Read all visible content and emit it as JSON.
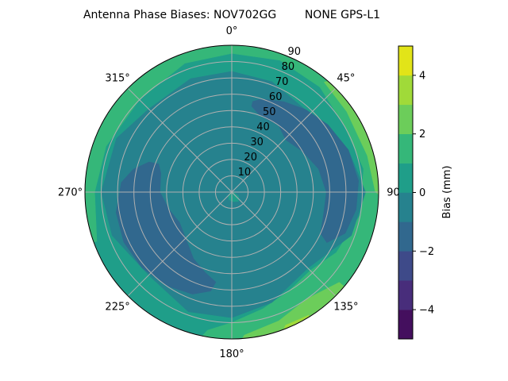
{
  "chart_data": {
    "type": "contour-polar",
    "title": "Antenna Phase Biases: NOV702GG        NONE GPS-L1",
    "angular_ticks": [
      "0°",
      "45°",
      "90",
      "135°",
      "180°",
      "225°",
      "270°",
      "315°"
    ],
    "angular_tick_values": [
      0,
      45,
      90,
      135,
      180,
      225,
      270,
      315
    ],
    "radial_ticks": [
      "10",
      "20",
      "30",
      "40",
      "50",
      "60",
      "70",
      "80",
      "90"
    ],
    "radial_tick_values": [
      10,
      20,
      30,
      40,
      50,
      60,
      70,
      80,
      90
    ],
    "rlim": [
      0,
      90
    ],
    "theta_zero": "top",
    "theta_direction": "clockwise",
    "grid": true,
    "colormap": "viridis",
    "levels": [
      -5,
      -4,
      -3,
      -2,
      -1,
      0,
      1,
      2,
      3,
      4,
      5
    ],
    "band_colors": [
      "#440f5e",
      "#482d7b",
      "#3e4a89",
      "#31688e",
      "#26828e",
      "#1f9e89",
      "#35b779",
      "#6ccd5a",
      "#a0da39",
      "#e2e418"
    ],
    "colorbar": {
      "label": "Bias (mm)",
      "ticks": [
        "−4",
        "−2",
        "0",
        "2",
        "4"
      ],
      "tick_values": [
        -4,
        -2,
        0,
        2,
        4
      ],
      "range": [
        -5,
        5
      ]
    },
    "background_band": [
      0,
      1
    ],
    "regions": [
      {
        "band": [
          1,
          2
        ],
        "points": [
          [
            250,
            100
          ],
          [
            250,
            88
          ],
          [
            270,
            84
          ],
          [
            290,
            82
          ],
          [
            315,
            80
          ],
          [
            340,
            84
          ],
          [
            0,
            85
          ],
          [
            20,
            86
          ],
          [
            40,
            84
          ],
          [
            50,
            100
          ],
          [
            20,
            100
          ],
          [
            350,
            100
          ],
          [
            320,
            100
          ],
          [
            290,
            100
          ],
          [
            260,
            100
          ]
        ]
      },
      {
        "band": [
          1,
          2
        ],
        "points": [
          [
            40,
            84
          ],
          [
            60,
            80
          ],
          [
            80,
            82
          ],
          [
            100,
            80
          ],
          [
            120,
            74
          ],
          [
            135,
            68
          ],
          [
            150,
            70
          ],
          [
            165,
            74
          ],
          [
            180,
            80
          ],
          [
            190,
            86
          ],
          [
            195,
            100
          ],
          [
            170,
            100
          ],
          [
            140,
            100
          ],
          [
            110,
            100
          ],
          [
            80,
            100
          ],
          [
            50,
            100
          ],
          [
            40,
            100
          ]
        ]
      },
      {
        "band": [
          2,
          3
        ],
        "points": [
          [
            40,
            88
          ],
          [
            55,
            86
          ],
          [
            75,
            86
          ],
          [
            90,
            88
          ],
          [
            95,
            100
          ],
          [
            70,
            100
          ],
          [
            45,
            100
          ]
        ]
      },
      {
        "band": [
          2,
          3
        ],
        "points": [
          [
            130,
            86
          ],
          [
            145,
            80
          ],
          [
            160,
            84
          ],
          [
            175,
            88
          ],
          [
            180,
            100
          ],
          [
            155,
            100
          ],
          [
            130,
            100
          ]
        ]
      },
      {
        "band": [
          3,
          4
        ],
        "points": [
          [
            148,
            89
          ],
          [
            158,
            88
          ],
          [
            165,
            100
          ],
          [
            150,
            100
          ]
        ]
      },
      {
        "band": [
          -1,
          0
        ],
        "points": [
          [
            0,
            74
          ],
          [
            20,
            72
          ],
          [
            45,
            68
          ],
          [
            70,
            76
          ],
          [
            90,
            82
          ],
          [
            110,
            78
          ],
          [
            135,
            66
          ],
          [
            160,
            72
          ],
          [
            180,
            77
          ],
          [
            200,
            78
          ],
          [
            225,
            72
          ],
          [
            250,
            78
          ],
          [
            270,
            80
          ],
          [
            295,
            78
          ],
          [
            315,
            72
          ],
          [
            340,
            74
          ]
        ]
      },
      {
        "band": [
          -2,
          -1
        ],
        "points": [
          [
            13,
            54
          ],
          [
            20,
            50
          ],
          [
            35,
            50
          ],
          [
            46,
            46
          ],
          [
            60,
            50
          ],
          [
            75,
            55
          ],
          [
            90,
            58
          ],
          [
            105,
            58
          ],
          [
            115,
            60
          ],
          [
            118,
            66
          ],
          [
            110,
            74
          ],
          [
            98,
            77
          ],
          [
            85,
            78
          ],
          [
            70,
            76
          ],
          [
            55,
            72
          ],
          [
            42,
            68
          ],
          [
            30,
            64
          ],
          [
            18,
            60
          ],
          [
            13,
            57
          ]
        ]
      },
      {
        "band": [
          -2,
          -1
        ],
        "points": [
          [
            291,
            48
          ],
          [
            285,
            45
          ],
          [
            270,
            44
          ],
          [
            255,
            40
          ],
          [
            240,
            37
          ],
          [
            225,
            40
          ],
          [
            210,
            47
          ],
          [
            198,
            52
          ],
          [
            190,
            56
          ],
          [
            192,
            62
          ],
          [
            201,
            67
          ],
          [
            215,
            70
          ],
          [
            230,
            72
          ],
          [
            245,
            73
          ],
          [
            260,
            72
          ],
          [
            275,
            68
          ],
          [
            283,
            62
          ],
          [
            290,
            54
          ]
        ]
      },
      {
        "band": [
          0,
          1
        ],
        "points": [
          [
            0,
            0
          ],
          [
            90,
            1
          ],
          [
            120,
            5
          ],
          [
            145,
            7
          ],
          [
            170,
            6
          ],
          [
            200,
            5
          ],
          [
            225,
            3
          ],
          [
            250,
            1
          ]
        ]
      }
    ]
  }
}
